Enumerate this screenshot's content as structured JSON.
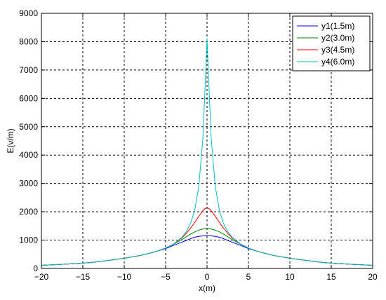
{
  "chart_data": {
    "type": "line",
    "title": "",
    "xlabel": "x(m)",
    "ylabel": "E(v/m)",
    "xlim": [
      -20,
      20
    ],
    "ylim": [
      0,
      9000
    ],
    "xticks": [
      -20,
      -15,
      -10,
      -5,
      0,
      5,
      10,
      15,
      20
    ],
    "yticks": [
      0,
      1000,
      2000,
      3000,
      4000,
      5000,
      6000,
      7000,
      8000,
      9000
    ],
    "xtick_labels": [
      "−20",
      "−15",
      "−10",
      "−5",
      "0",
      "5",
      "10",
      "15",
      "20"
    ],
    "ytick_labels": [
      "0",
      "1000",
      "2000",
      "3000",
      "4000",
      "5000",
      "6000",
      "7000",
      "8000",
      "9000"
    ],
    "grid": true,
    "legend_position": "top-right",
    "x": [
      -20,
      -18,
      -16,
      -14,
      -12,
      -10,
      -8,
      -6,
      -5,
      -4,
      -3,
      -2.5,
      -2,
      -1.5,
      -1,
      -0.5,
      -0.25,
      0,
      0.25,
      0.5,
      1,
      1.5,
      2,
      2.5,
      3,
      4,
      5,
      6,
      8,
      10,
      12,
      14,
      16,
      18,
      20
    ],
    "series": [
      {
        "name": "y1(1.5m)",
        "color": "#0000ff",
        "values": [
          110,
          140,
          170,
          210,
          280,
          360,
          460,
          610,
          700,
          820,
          930,
          990,
          1050,
          1100,
          1130,
          1150,
          1155,
          1160,
          1155,
          1150,
          1130,
          1100,
          1050,
          990,
          930,
          820,
          700,
          610,
          460,
          360,
          280,
          210,
          170,
          140,
          110
        ]
      },
      {
        "name": "y2(3.0m)",
        "color": "#008000",
        "values": [
          110,
          140,
          170,
          210,
          280,
          360,
          460,
          610,
          720,
          860,
          1030,
          1120,
          1210,
          1290,
          1350,
          1390,
          1400,
          1410,
          1400,
          1390,
          1350,
          1290,
          1210,
          1120,
          1030,
          860,
          720,
          610,
          460,
          360,
          280,
          210,
          170,
          140,
          110
        ]
      },
      {
        "name": "y3(4.5m)",
        "color": "#ff0000",
        "values": [
          110,
          140,
          170,
          210,
          280,
          360,
          460,
          610,
          720,
          870,
          1090,
          1240,
          1420,
          1620,
          1840,
          2040,
          2110,
          2150,
          2110,
          2040,
          1840,
          1620,
          1420,
          1240,
          1090,
          870,
          720,
          610,
          460,
          360,
          280,
          210,
          170,
          140,
          110
        ]
      },
      {
        "name": "y4(6.0m)",
        "color": "#00bfbf",
        "values": [
          110,
          140,
          170,
          210,
          280,
          360,
          460,
          610,
          720,
          870,
          1110,
          1300,
          1580,
          2040,
          2880,
          4600,
          6300,
          8100,
          6300,
          4600,
          2880,
          2040,
          1580,
          1300,
          1110,
          870,
          720,
          610,
          460,
          360,
          280,
          210,
          170,
          140,
          110
        ]
      }
    ]
  }
}
